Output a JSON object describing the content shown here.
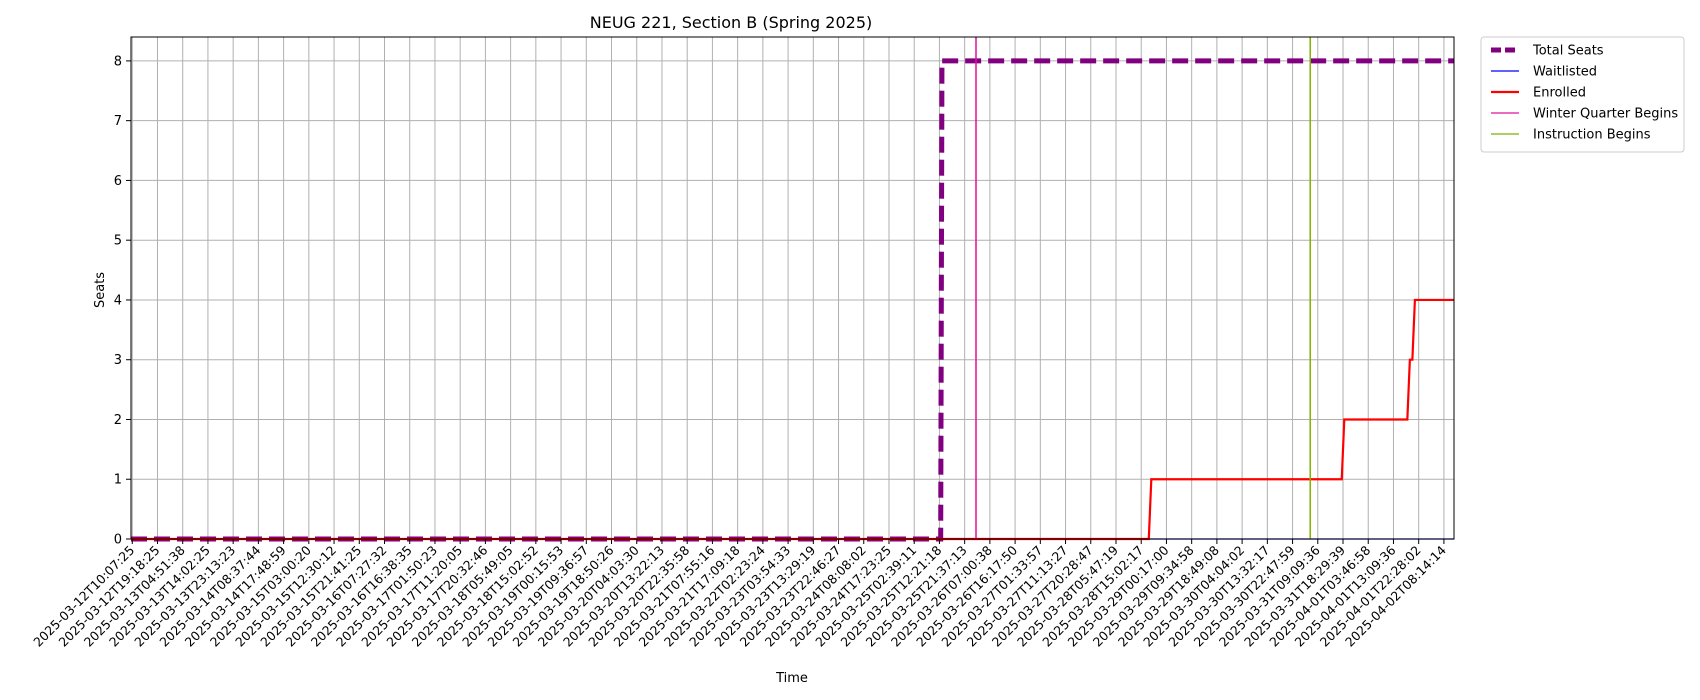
{
  "chart_data": {
    "type": "line",
    "title": "NEUG 221, Section B (Spring 2025)",
    "xlabel": "Time",
    "ylabel": "Seats",
    "ylim": [
      0,
      8.4
    ],
    "yticks": [
      "0",
      "1",
      "2",
      "3",
      "4",
      "5",
      "6",
      "7",
      "8"
    ],
    "grid": true,
    "legend_position": "outside-top-right",
    "x_categories": [
      "2025-03-12T10:07:25",
      "2025-03-12T19:18:25",
      "2025-03-13T04:51:38",
      "2025-03-13T14:02:25",
      "2025-03-13T23:13:23",
      "2025-03-14T08:37:44",
      "2025-03-14T17:48:59",
      "2025-03-15T03:00:20",
      "2025-03-15T12:30:12",
      "2025-03-15T21:41:25",
      "2025-03-16T07:27:32",
      "2025-03-16T16:38:35",
      "2025-03-17T01:50:23",
      "2025-03-17T11:20:05",
      "2025-03-17T20:32:46",
      "2025-03-18T05:49:05",
      "2025-03-18T15:02:52",
      "2025-03-19T00:15:53",
      "2025-03-19T09:36:57",
      "2025-03-19T18:50:26",
      "2025-03-20T04:03:30",
      "2025-03-20T13:22:13",
      "2025-03-20T22:35:58",
      "2025-03-21T07:55:16",
      "2025-03-21T17:09:18",
      "2025-03-22T02:23:24",
      "2025-03-23T03:54:33",
      "2025-03-23T13:29:19",
      "2025-03-23T22:46:27",
      "2025-03-24T08:08:02",
      "2025-03-24T17:23:25",
      "2025-03-25T02:39:11",
      "2025-03-25T12:21:18",
      "2025-03-25T21:37:13",
      "2025-03-26T07:00:38",
      "2025-03-26T16:17:50",
      "2025-03-27T01:33:57",
      "2025-03-27T11:13:27",
      "2025-03-27T20:28:47",
      "2025-03-28T05:47:19",
      "2025-03-28T15:02:17",
      "2025-03-29T00:17:00",
      "2025-03-29T09:34:58",
      "2025-03-29T18:49:08",
      "2025-03-30T04:04:02",
      "2025-03-30T13:32:17",
      "2025-03-30T22:47:59",
      "2025-03-31T09:09:36",
      "2025-03-31T18:29:39",
      "2025-04-01T03:46:58",
      "2025-04-01T13:09:36",
      "2025-04-01T22:28:02",
      "2025-04-02T08:14:14"
    ],
    "x_index_range": [
      -0.05,
      52.4
    ],
    "series": [
      {
        "name": "Total Seats",
        "color": "#800080",
        "style": "dashed-thick",
        "points": [
          [
            -0.05,
            0
          ],
          [
            32.05,
            0
          ],
          [
            32.1,
            8
          ],
          [
            52.4,
            8
          ]
        ]
      },
      {
        "name": "Waitlisted",
        "color": "#0000ff",
        "style": "solid-thin",
        "points": [
          [
            -0.05,
            0
          ],
          [
            52.4,
            0
          ]
        ]
      },
      {
        "name": "Enrolled",
        "color": "#ff0000",
        "style": "solid",
        "points": [
          [
            -0.05,
            0
          ],
          [
            40.3,
            0
          ],
          [
            40.4,
            1
          ],
          [
            47.95,
            1
          ],
          [
            48.05,
            2
          ],
          [
            50.55,
            2
          ],
          [
            50.65,
            3
          ],
          [
            50.75,
            3
          ],
          [
            50.85,
            4
          ],
          [
            52.4,
            4
          ]
        ]
      }
    ],
    "vertical_markers": [
      {
        "name": "Winter Quarter Begins",
        "color": "#e0109a",
        "x_index": 33.45
      },
      {
        "name": "Instruction Begins",
        "color": "#80b000",
        "x_index": 46.7
      }
    ],
    "legend_entries": [
      {
        "label": "Total Seats",
        "color": "#800080",
        "style": "dashed-thick"
      },
      {
        "label": "Waitlisted",
        "color": "#0000ff",
        "style": "solid-thin"
      },
      {
        "label": "Enrolled",
        "color": "#ff0000",
        "style": "solid"
      },
      {
        "label": "Winter Quarter Begins",
        "color": "#e0109a",
        "style": "solid-thin"
      },
      {
        "label": "Instruction Begins",
        "color": "#80b000",
        "style": "solid-thin"
      }
    ]
  }
}
